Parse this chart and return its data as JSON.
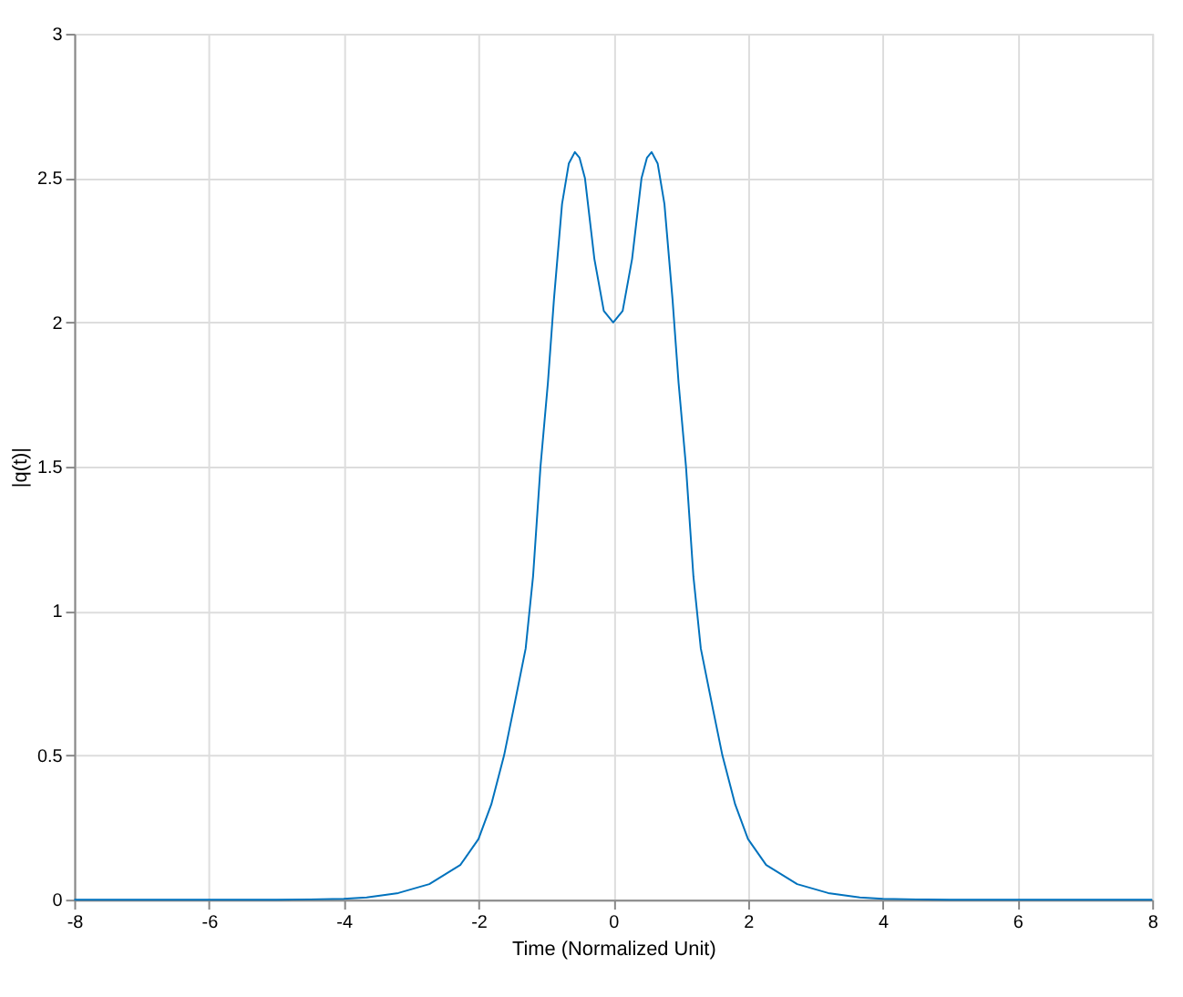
{
  "chart_data": {
    "type": "line",
    "xlabel": "Time (Normalized Unit)",
    "ylabel": "|q(t)|",
    "x": [
      -8,
      -6,
      -5,
      -4.5,
      -4,
      -3.66,
      -3.19,
      -2.73,
      -2.27,
      -2,
      -1.81,
      -1.62,
      -1.48,
      -1.3,
      -1.19,
      -1.08,
      -0.97,
      -0.88,
      -0.76,
      -0.66,
      -0.57,
      -0.5,
      -0.42,
      -0.28,
      -0.14,
      0,
      0.14,
      0.28,
      0.42,
      0.5,
      0.57,
      0.66,
      0.76,
      0.88,
      0.97,
      1.08,
      1.19,
      1.3,
      1.48,
      1.62,
      1.81,
      2,
      2.27,
      2.73,
      3.19,
      3.66,
      4,
      4.5,
      5,
      6,
      8
    ],
    "series": [
      {
        "color": "#0072bd",
        "values": [
          0,
          0,
          0,
          0.001,
          0.003,
          0.008,
          0.023,
          0.054,
          0.12,
          0.21,
          0.33,
          0.5,
          0.66,
          0.87,
          1.12,
          1.5,
          1.79,
          2.08,
          2.41,
          2.55,
          2.59,
          2.57,
          2.5,
          2.22,
          2.04,
          2.0,
          2.04,
          2.22,
          2.5,
          2.57,
          2.59,
          2.55,
          2.41,
          2.08,
          1.79,
          1.5,
          1.12,
          0.87,
          0.66,
          0.5,
          0.33,
          0.21,
          0.12,
          0.054,
          0.023,
          0.008,
          0.003,
          0.001,
          0,
          0,
          0
        ]
      }
    ],
    "xlim": [
      -8,
      8
    ],
    "xticks": [
      -8,
      -6,
      -4,
      -2,
      0,
      2,
      4,
      6,
      8
    ],
    "ylim": [
      0,
      3
    ],
    "yticks": [
      0,
      0.5,
      1,
      1.5,
      2,
      2.5,
      3
    ],
    "grid": true,
    "legend": false,
    "marker": "none",
    "line_style": "solid"
  }
}
